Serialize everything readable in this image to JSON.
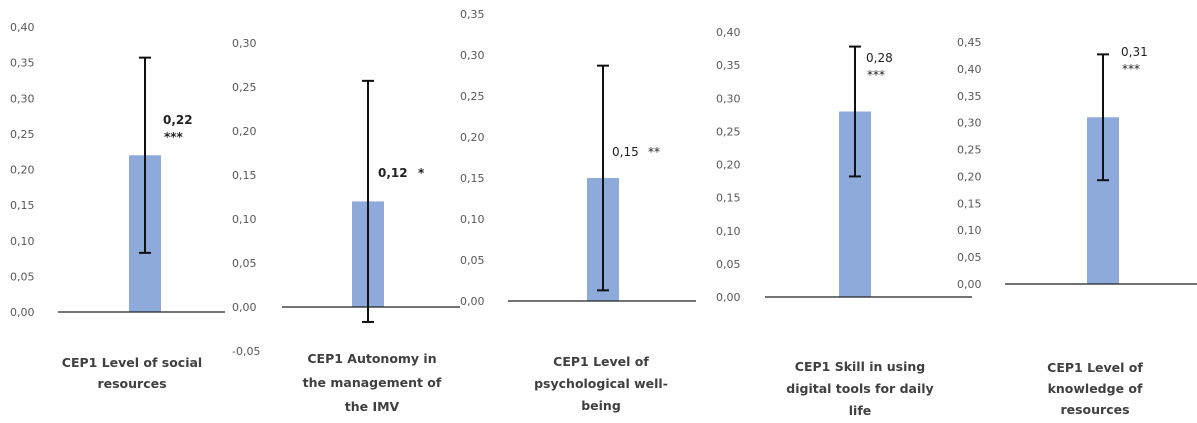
{
  "chart_data": [
    {
      "type": "bar",
      "categories": [
        "CEP1 Level of social resources"
      ],
      "values": [
        0.22
      ],
      "error_bars": [
        [
          0.083,
          0.357
        ]
      ],
      "value_label": "0,22",
      "significance": "***",
      "ylim": [
        0.0,
        0.4
      ],
      "ytick_step": 0.05,
      "ytick_labels": [
        "0,00",
        "0,05",
        "0,10",
        "0,15",
        "0,20",
        "0,25",
        "0,30",
        "0,35",
        "0,40"
      ],
      "category_label_lines": [
        "CEP1 Level of social",
        "resources"
      ],
      "bar_color": "#8eaadb",
      "grid": false
    },
    {
      "type": "bar",
      "categories": [
        "CEP1 Autonomy in the management of the IMV"
      ],
      "values": [
        0.12
      ],
      "error_bars": [
        [
          -0.017,
          0.257
        ]
      ],
      "value_label": "0,12",
      "significance": "*",
      "ylim": [
        -0.05,
        0.3
      ],
      "ytick_step": 0.05,
      "ytick_labels": [
        "-0,05",
        "0,00",
        "0,05",
        "0,10",
        "0,15",
        "0,20",
        "0,25",
        "0,30"
      ],
      "category_label_lines": [
        "CEP1 Autonomy in",
        "the management of",
        "the IMV"
      ],
      "bar_color": "#8eaadb",
      "grid": false
    },
    {
      "type": "bar",
      "categories": [
        "CEP1 Level of psychological well-being"
      ],
      "values": [
        0.15
      ],
      "error_bars": [
        [
          0.013,
          0.287
        ]
      ],
      "value_label": "0,15",
      "significance": "**",
      "ylim": [
        0.0,
        0.35
      ],
      "ytick_step": 0.05,
      "ytick_labels": [
        "0,00",
        "0,05",
        "0,10",
        "0,15",
        "0,20",
        "0,25",
        "0,30",
        "0,35"
      ],
      "category_label_lines": [
        "CEP1 Level of",
        "psychological well-",
        "being"
      ],
      "bar_color": "#8eaadb",
      "grid": false
    },
    {
      "type": "bar",
      "categories": [
        "CEP1 Skill in using digital tools for daily life"
      ],
      "values": [
        0.28
      ],
      "error_bars": [
        [
          0.182,
          0.378
        ]
      ],
      "value_label": "0,28",
      "significance": "***",
      "ylim": [
        0.0,
        0.4
      ],
      "ytick_step": 0.05,
      "ytick_labels": [
        "0,00",
        "0,05",
        "0,10",
        "0,15",
        "0,20",
        "0,25",
        "0,30",
        "0,35",
        "0,40"
      ],
      "category_label_lines": [
        "CEP1 Skill in using",
        "digital tools for daily",
        "life"
      ],
      "bar_color": "#8eaadb",
      "grid": false
    },
    {
      "type": "bar",
      "categories": [
        "CEP1 Level of knowledge of resources"
      ],
      "values": [
        0.31
      ],
      "error_bars": [
        [
          0.193,
          0.427
        ]
      ],
      "value_label": "0,31",
      "significance": "***",
      "ylim": [
        0.0,
        0.45
      ],
      "ytick_step": 0.05,
      "ytick_labels": [
        "0,00",
        "0,05",
        "0,10",
        "0,15",
        "0,20",
        "0,25",
        "0,30",
        "0,35",
        "0,40",
        "0,45"
      ],
      "category_label_lines": [
        "CEP1 Level of",
        "knowledge of",
        "resources"
      ],
      "bar_color": "#8eaadb",
      "grid": false
    }
  ]
}
